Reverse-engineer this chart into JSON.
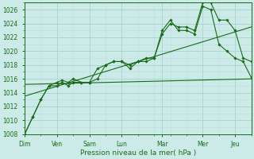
{
  "x_labels": [
    "Dim",
    "Ven",
    "Sam",
    "Lun",
    "Mar",
    "Mer",
    "Jeu"
  ],
  "xlabel": "Pression niveau de la mer( hPa )",
  "ylim": [
    1008,
    1027
  ],
  "yticks": [
    1008,
    1010,
    1012,
    1014,
    1016,
    1018,
    1020,
    1022,
    1024,
    1026
  ],
  "bg_color": "#cceae7",
  "grid_major_color": "#aad6d2",
  "grid_minor_color": "#bbdeda",
  "line_color": "#1a6b1a",
  "xlim": [
    0,
    14
  ],
  "x_tick_pos": [
    0,
    2,
    4,
    6,
    8.5,
    11,
    13
  ],
  "line1_x": [
    0,
    0.5,
    1,
    1.5,
    2,
    2.3,
    2.7,
    3,
    3.5,
    4,
    4.5,
    5,
    5.5,
    6,
    6.5,
    7,
    7.5,
    8,
    8.5,
    9,
    9.5,
    10,
    10.5,
    11,
    11.5,
    12,
    12.5,
    13,
    13.5,
    14
  ],
  "line1_y": [
    1008,
    1010.5,
    1013,
    1015,
    1015.5,
    1015.8,
    1015.5,
    1016,
    1015.5,
    1015.5,
    1016,
    1018,
    1018.5,
    1018.5,
    1017.5,
    1018.5,
    1019,
    1019,
    1022.5,
    1024,
    1023.5,
    1023.5,
    1023,
    1027,
    1027,
    1024.5,
    1024.5,
    1023,
    1019,
    1018.5
  ],
  "line2_x": [
    0,
    0.5,
    1,
    1.5,
    2,
    2.3,
    2.7,
    3,
    3.5,
    4,
    4.5,
    5,
    5.5,
    6,
    6.5,
    7,
    7.5,
    8,
    8.5,
    9,
    9.5,
    10,
    10.5,
    11,
    11.5,
    12,
    12.5,
    13,
    13.5,
    14
  ],
  "line2_y": [
    1008,
    1010.5,
    1013,
    1015,
    1015,
    1015.5,
    1015,
    1015.5,
    1015.5,
    1015.5,
    1017.5,
    1018,
    1018.5,
    1018.5,
    1018,
    1018.5,
    1018.5,
    1019,
    1023,
    1024.5,
    1023,
    1023,
    1022.5,
    1026.5,
    1026,
    1021,
    1020,
    1019,
    1018.5,
    1016.2
  ],
  "line3_x": [
    0,
    14
  ],
  "line3_y": [
    1015.2,
    1016.0
  ],
  "line4_x": [
    0,
    14
  ],
  "line4_y": [
    1013.5,
    1023.5
  ]
}
